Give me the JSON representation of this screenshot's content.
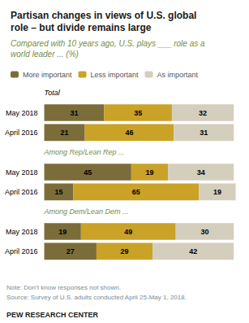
{
  "chart_data": {
    "type": "bar",
    "orientation": "horizontal",
    "stacked": true,
    "data_labels": true,
    "grid": false,
    "tick_labels": "y",
    "legend": "top",
    "title": "Partisan changes in views of U.S. global\nrole – but divide remains large",
    "subtitle": "Compared with 10 years ago, U.S. plays ___ role as a\nworld leader ... (%)",
    "annotations": [
      "Note: Don’t know responses not shown.",
      "Source: Survey of U.S. adults conducted April 25-May 1, 2018.",
      "PEW RESEARCH CENTER"
    ],
    "groups": [
      {
        "label": "Total",
        "color": "#000000",
        "categories": [
          "May 2018",
          "April 2016"
        ]
      },
      {
        "label": "Among Rep/Lean Rep ...",
        "color": "#7a8c3e",
        "categories": [
          "May 2018",
          "April 2016"
        ]
      },
      {
        "label": "Among Dem/Lean Dem ...",
        "color": "#7a8c3e",
        "categories": [
          "May 2018",
          "April 2016"
        ]
      }
    ],
    "series": [
      {
        "name": "More important",
        "color": "#7b6d3a",
        "values": [
          31,
          21,
          45,
          15,
          19,
          27
        ]
      },
      {
        "name": "Less important",
        "color": "#c9a227",
        "values": [
          35,
          46,
          19,
          65,
          49,
          29
        ]
      },
      {
        "name": "As important",
        "color": "#d4cebc",
        "values": [
          32,
          31,
          34,
          19,
          30,
          42
        ]
      }
    ],
    "xlim": [
      0,
      100
    ]
  }
}
